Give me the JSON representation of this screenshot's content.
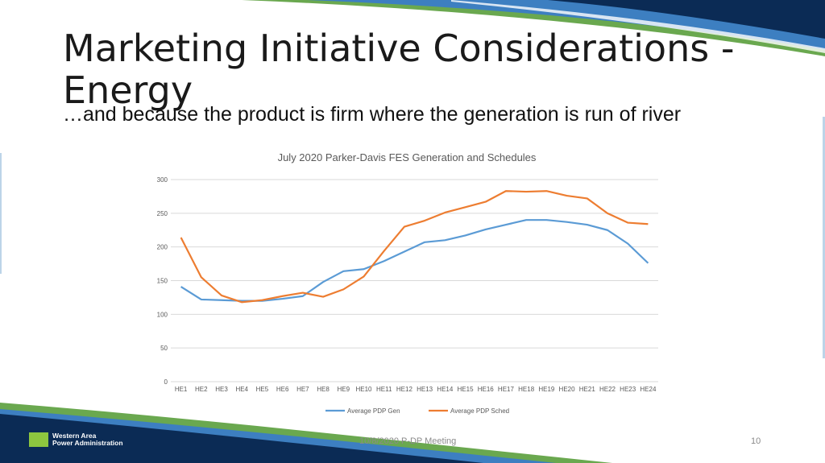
{
  "slide": {
    "title": "Marketing Initiative Considerations - Energy",
    "subtitle": "…and because the product is firm where the generation is run of river",
    "footer_center": "10/8/2020 P-DP Meeting",
    "page_number": "10",
    "logo_line1": "Western Area",
    "logo_line2": "Power Administration",
    "colors": {
      "navy": "#0b2b55",
      "blue": "#3d7fc1",
      "green": "#6aa84f",
      "light_green": "#8dc63f"
    }
  },
  "chart_data": {
    "type": "line",
    "title": "July 2020 Parker-Davis FES Generation and Schedules",
    "xlabel": "",
    "ylabel": "",
    "categories": [
      "HE1",
      "HE2",
      "HE3",
      "HE4",
      "HE5",
      "HE6",
      "HE7",
      "HE8",
      "HE9",
      "HE10",
      "HE11",
      "HE12",
      "HE13",
      "HE14",
      "HE15",
      "HE16",
      "HE17",
      "HE18",
      "HE19",
      "HE20",
      "HE21",
      "HE22",
      "HE23",
      "HE24"
    ],
    "ylim": [
      0,
      300
    ],
    "yticks": [
      0,
      50,
      100,
      150,
      200,
      250,
      300
    ],
    "grid": true,
    "legend_position": "bottom",
    "series": [
      {
        "name": "Average PDP Gen",
        "color": "#5b9bd5",
        "values": [
          141,
          122,
          121,
          120,
          120,
          123,
          127,
          148,
          164,
          167,
          179,
          193,
          207,
          210,
          217,
          226,
          233,
          240,
          240,
          237,
          233,
          225,
          205,
          176
        ]
      },
      {
        "name": "Average PDP Sched",
        "color": "#ed7d31",
        "values": [
          214,
          155,
          128,
          118,
          121,
          127,
          132,
          126,
          137,
          156,
          194,
          230,
          239,
          251,
          259,
          267,
          283,
          282,
          283,
          276,
          272,
          250,
          236,
          234
        ]
      }
    ]
  }
}
